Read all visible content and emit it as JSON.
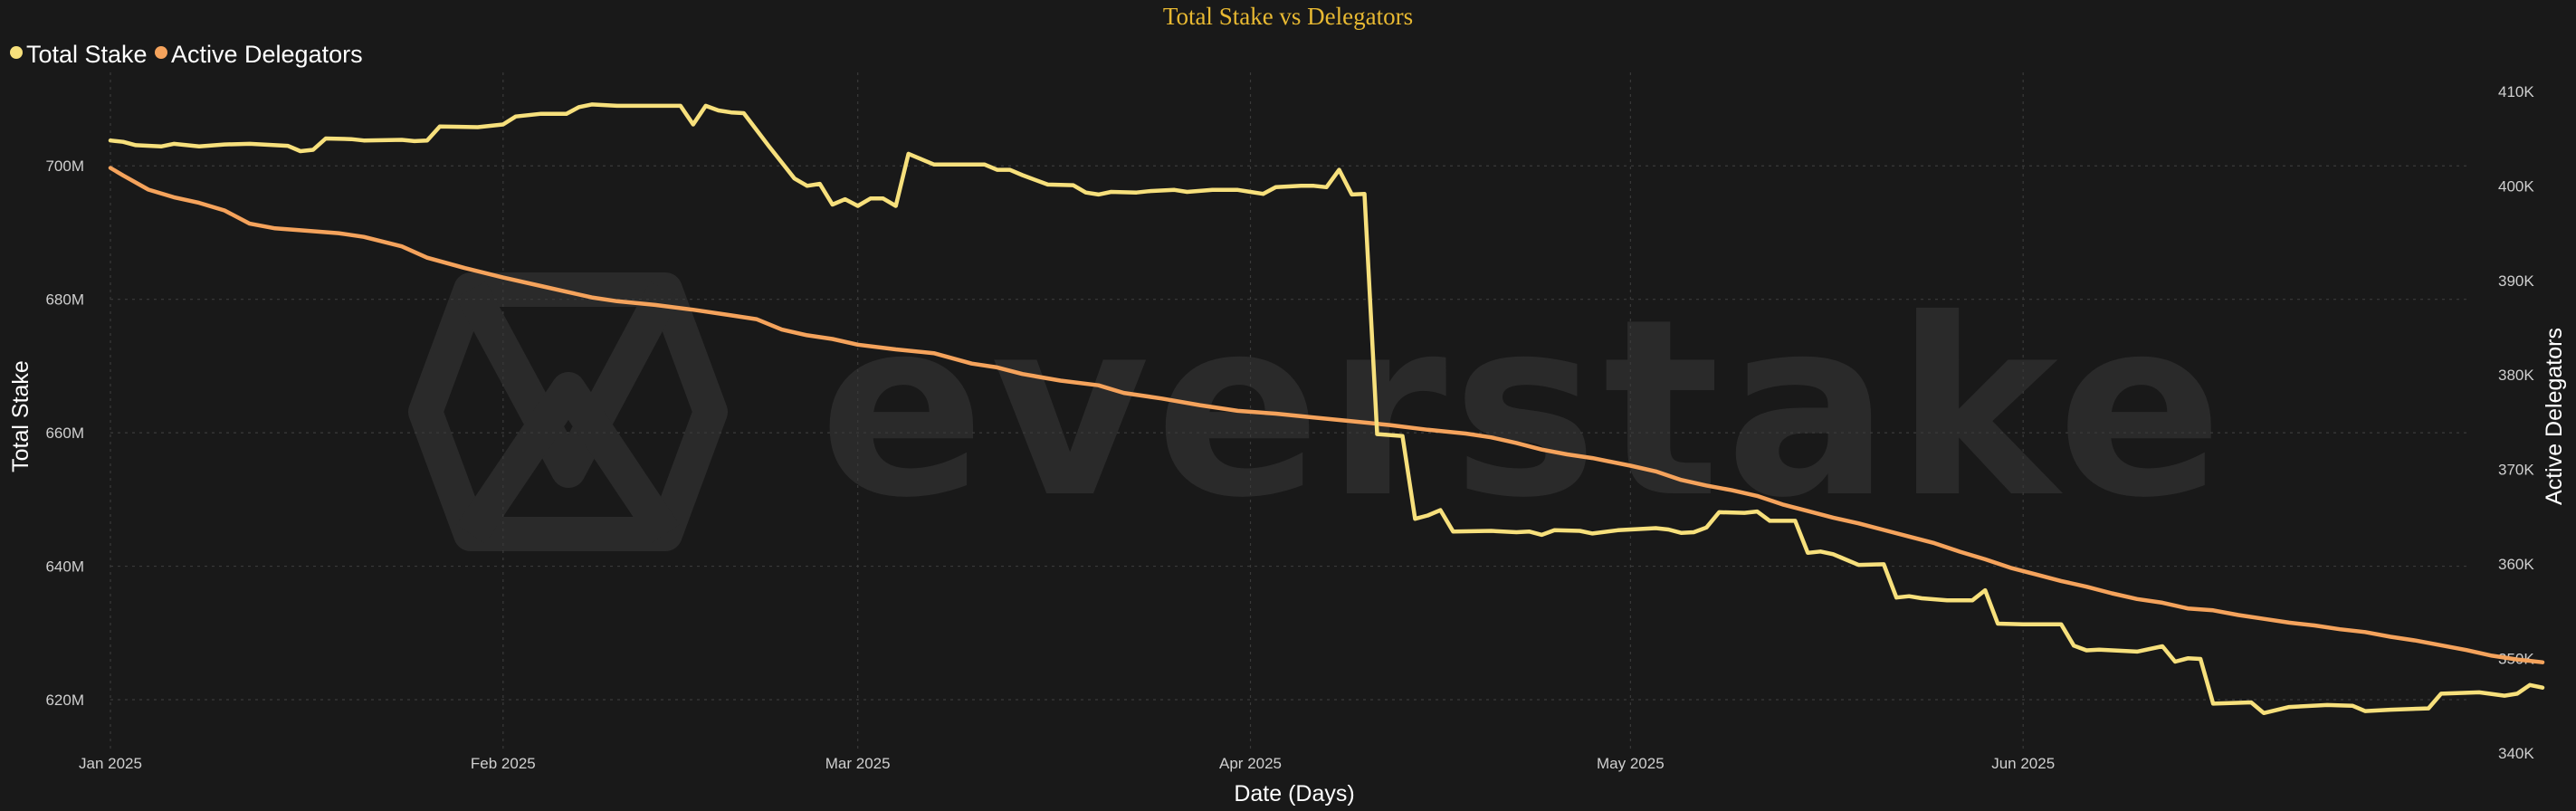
{
  "chart_data": {
    "type": "line",
    "title": "Total Stake vs Delegators",
    "xlabel": "Date (Days)",
    "ylabel": "Total Stake",
    "ylabel_right": "Active Delegators",
    "x_ticks": [
      "Jan 2025",
      "Feb 2025",
      "Mar 2025",
      "Apr 2025",
      "May 2025",
      "Jun 2025"
    ],
    "y_ticks": [
      "620M",
      "640M",
      "660M",
      "680M",
      "700M"
    ],
    "y2_ticks": [
      "340K",
      "350K",
      "360K",
      "370K",
      "380K",
      "390K",
      "400K",
      "410K"
    ],
    "ylim": [
      612,
      714
    ],
    "y2lim": [
      340,
      412
    ],
    "xlim": [
      "2025-01-01",
      "2025-07-06"
    ],
    "grid": true,
    "legend_position": "top-left",
    "watermark": "everstake",
    "series": [
      {
        "name": "Total Stake",
        "axis": "left",
        "color": "#f7e07c",
        "points": [
          [
            "2025-01-01",
            703.8
          ],
          [
            "2025-01-02",
            703.6
          ],
          [
            "2025-01-03",
            703.1
          ],
          [
            "2025-01-05",
            702.9
          ],
          [
            "2025-01-06",
            703.3
          ],
          [
            "2025-01-08",
            702.9
          ],
          [
            "2025-01-10",
            703.2
          ],
          [
            "2025-01-12",
            703.3
          ],
          [
            "2025-01-15",
            703.0
          ],
          [
            "2025-01-16",
            702.2
          ],
          [
            "2025-01-17",
            702.4
          ],
          [
            "2025-01-18",
            704.1
          ],
          [
            "2025-01-20",
            704.0
          ],
          [
            "2025-01-21",
            703.8
          ],
          [
            "2025-01-24",
            703.9
          ],
          [
            "2025-01-25",
            703.7
          ],
          [
            "2025-01-26",
            703.8
          ],
          [
            "2025-01-27",
            705.9
          ],
          [
            "2025-01-30",
            705.8
          ],
          [
            "2025-02-01",
            706.2
          ],
          [
            "2025-02-02",
            707.4
          ],
          [
            "2025-02-04",
            707.8
          ],
          [
            "2025-02-06",
            707.8
          ],
          [
            "2025-02-07",
            708.8
          ],
          [
            "2025-02-08",
            709.2
          ],
          [
            "2025-02-10",
            709.0
          ],
          [
            "2025-02-12",
            709.0
          ],
          [
            "2025-02-15",
            709.0
          ],
          [
            "2025-02-16",
            706.2
          ],
          [
            "2025-02-17",
            709.0
          ],
          [
            "2025-02-18",
            708.3
          ],
          [
            "2025-02-19",
            708.0
          ],
          [
            "2025-02-20",
            707.9
          ],
          [
            "2025-02-21",
            705.4
          ],
          [
            "2025-02-22",
            702.9
          ],
          [
            "2025-02-24",
            698.1
          ],
          [
            "2025-02-25",
            697.0
          ],
          [
            "2025-02-26",
            697.3
          ],
          [
            "2025-02-27",
            694.2
          ],
          [
            "2025-02-28",
            695.0
          ],
          [
            "2025-03-01",
            694.0
          ],
          [
            "2025-03-02",
            695.1
          ],
          [
            "2025-03-03",
            695.1
          ],
          [
            "2025-03-04",
            694.0
          ],
          [
            "2025-03-05",
            701.8
          ],
          [
            "2025-03-06",
            701.0
          ],
          [
            "2025-03-07",
            700.2
          ],
          [
            "2025-03-10",
            700.2
          ],
          [
            "2025-03-11",
            700.2
          ],
          [
            "2025-03-12",
            699.4
          ],
          [
            "2025-03-13",
            699.4
          ],
          [
            "2025-03-14",
            698.6
          ],
          [
            "2025-03-16",
            697.2
          ],
          [
            "2025-03-18",
            697.1
          ],
          [
            "2025-03-19",
            696.0
          ],
          [
            "2025-03-20",
            695.7
          ],
          [
            "2025-03-21",
            696.1
          ],
          [
            "2025-03-23",
            696.0
          ],
          [
            "2025-03-24",
            696.2
          ],
          [
            "2025-03-26",
            696.4
          ],
          [
            "2025-03-27",
            696.1
          ],
          [
            "2025-03-29",
            696.4
          ],
          [
            "2025-03-31",
            696.4
          ],
          [
            "2025-04-01",
            696.1
          ],
          [
            "2025-04-02",
            695.8
          ],
          [
            "2025-04-03",
            696.8
          ],
          [
            "2025-04-05",
            697.0
          ],
          [
            "2025-04-06",
            697.0
          ],
          [
            "2025-04-07",
            696.8
          ],
          [
            "2025-04-08",
            699.4
          ],
          [
            "2025-04-09",
            695.7
          ],
          [
            "2025-04-10",
            695.8
          ],
          [
            "2025-04-11",
            659.8
          ],
          [
            "2025-04-13",
            659.5
          ],
          [
            "2025-04-14",
            647.1
          ],
          [
            "2025-04-15",
            647.6
          ],
          [
            "2025-04-16",
            648.4
          ],
          [
            "2025-04-17",
            645.2
          ],
          [
            "2025-04-20",
            645.3
          ],
          [
            "2025-04-22",
            645.1
          ],
          [
            "2025-04-23",
            645.2
          ],
          [
            "2025-04-24",
            644.7
          ],
          [
            "2025-04-25",
            645.4
          ],
          [
            "2025-04-27",
            645.3
          ],
          [
            "2025-04-28",
            644.9
          ],
          [
            "2025-04-30",
            645.4
          ],
          [
            "2025-05-01",
            645.5
          ],
          [
            "2025-05-03",
            645.7
          ],
          [
            "2025-05-04",
            645.5
          ],
          [
            "2025-05-05",
            645.0
          ],
          [
            "2025-05-06",
            645.1
          ],
          [
            "2025-05-07",
            645.8
          ],
          [
            "2025-05-08",
            648.1
          ],
          [
            "2025-05-10",
            648.0
          ],
          [
            "2025-05-11",
            648.2
          ],
          [
            "2025-05-12",
            646.8
          ],
          [
            "2025-05-14",
            646.8
          ],
          [
            "2025-05-15",
            642.0
          ],
          [
            "2025-05-16",
            642.2
          ],
          [
            "2025-05-17",
            641.8
          ],
          [
            "2025-05-19",
            640.2
          ],
          [
            "2025-05-21",
            640.3
          ],
          [
            "2025-05-22",
            635.3
          ],
          [
            "2025-05-23",
            635.5
          ],
          [
            "2025-05-24",
            635.2
          ],
          [
            "2025-05-26",
            634.9
          ],
          [
            "2025-05-28",
            634.9
          ],
          [
            "2025-05-29",
            636.4
          ],
          [
            "2025-05-30",
            631.4
          ],
          [
            "2025-06-01",
            631.3
          ],
          [
            "2025-06-04",
            631.3
          ],
          [
            "2025-06-05",
            628.1
          ],
          [
            "2025-06-06",
            627.4
          ],
          [
            "2025-06-07",
            627.5
          ],
          [
            "2025-06-10",
            627.2
          ],
          [
            "2025-06-12",
            628.0
          ],
          [
            "2025-06-13",
            625.7
          ],
          [
            "2025-06-14",
            626.2
          ],
          [
            "2025-06-15",
            626.1
          ],
          [
            "2025-06-16",
            619.4
          ],
          [
            "2025-06-19",
            619.6
          ],
          [
            "2025-06-20",
            618.0
          ],
          [
            "2025-06-22",
            618.9
          ],
          [
            "2025-06-25",
            619.2
          ],
          [
            "2025-06-27",
            619.1
          ],
          [
            "2025-06-28",
            618.3
          ],
          [
            "2025-06-30",
            618.5
          ],
          [
            "2025-07-03",
            618.7
          ],
          [
            "2025-07-04",
            620.9
          ],
          [
            "2025-07-07",
            621.1
          ],
          [
            "2025-07-09",
            620.6
          ],
          [
            "2025-07-10",
            620.9
          ],
          [
            "2025-07-11",
            622.2
          ],
          [
            "2025-07-12",
            621.8
          ]
        ]
      },
      {
        "name": "Active Delegators",
        "axis": "right",
        "color": "#f5a35c",
        "points": [
          [
            "2025-01-01",
            401.9
          ],
          [
            "2025-01-02",
            401.1
          ],
          [
            "2025-01-04",
            399.6
          ],
          [
            "2025-01-06",
            398.8
          ],
          [
            "2025-01-08",
            398.2
          ],
          [
            "2025-01-10",
            397.4
          ],
          [
            "2025-01-12",
            396.0
          ],
          [
            "2025-01-14",
            395.5
          ],
          [
            "2025-01-16",
            395.3
          ],
          [
            "2025-01-19",
            395.0
          ],
          [
            "2025-01-21",
            394.6
          ],
          [
            "2025-01-24",
            393.6
          ],
          [
            "2025-01-26",
            392.4
          ],
          [
            "2025-01-29",
            391.3
          ],
          [
            "2025-02-01",
            390.3
          ],
          [
            "2025-02-04",
            389.4
          ],
          [
            "2025-02-06",
            388.8
          ],
          [
            "2025-02-08",
            388.2
          ],
          [
            "2025-02-10",
            387.8
          ],
          [
            "2025-02-13",
            387.4
          ],
          [
            "2025-02-16",
            386.9
          ],
          [
            "2025-02-19",
            386.3
          ],
          [
            "2025-02-21",
            385.9
          ],
          [
            "2025-02-23",
            384.8
          ],
          [
            "2025-02-25",
            384.2
          ],
          [
            "2025-02-27",
            383.8
          ],
          [
            "2025-03-01",
            383.2
          ],
          [
            "2025-03-04",
            382.7
          ],
          [
            "2025-03-07",
            382.3
          ],
          [
            "2025-03-10",
            381.2
          ],
          [
            "2025-03-12",
            380.8
          ],
          [
            "2025-03-14",
            380.1
          ],
          [
            "2025-03-17",
            379.4
          ],
          [
            "2025-03-20",
            378.9
          ],
          [
            "2025-03-22",
            378.1
          ],
          [
            "2025-03-25",
            377.5
          ],
          [
            "2025-03-28",
            376.8
          ],
          [
            "2025-03-31",
            376.2
          ],
          [
            "2025-04-03",
            375.9
          ],
          [
            "2025-04-06",
            375.5
          ],
          [
            "2025-04-09",
            375.1
          ],
          [
            "2025-04-12",
            374.7
          ],
          [
            "2025-04-15",
            374.2
          ],
          [
            "2025-04-18",
            373.8
          ],
          [
            "2025-04-20",
            373.4
          ],
          [
            "2025-04-22",
            372.8
          ],
          [
            "2025-04-24",
            372.1
          ],
          [
            "2025-04-26",
            371.6
          ],
          [
            "2025-04-28",
            371.2
          ],
          [
            "2025-05-01",
            370.4
          ],
          [
            "2025-05-03",
            369.8
          ],
          [
            "2025-05-05",
            368.9
          ],
          [
            "2025-05-07",
            368.3
          ],
          [
            "2025-05-09",
            367.8
          ],
          [
            "2025-05-11",
            367.2
          ],
          [
            "2025-05-13",
            366.3
          ],
          [
            "2025-05-15",
            365.6
          ],
          [
            "2025-05-17",
            364.9
          ],
          [
            "2025-05-19",
            364.3
          ],
          [
            "2025-05-21",
            363.6
          ],
          [
            "2025-05-23",
            362.9
          ],
          [
            "2025-05-25",
            362.2
          ],
          [
            "2025-05-27",
            361.3
          ],
          [
            "2025-05-29",
            360.5
          ],
          [
            "2025-05-31",
            359.6
          ],
          [
            "2025-06-02",
            358.9
          ],
          [
            "2025-06-04",
            358.2
          ],
          [
            "2025-06-06",
            357.6
          ],
          [
            "2025-06-08",
            356.9
          ],
          [
            "2025-06-10",
            356.3
          ],
          [
            "2025-06-12",
            355.9
          ],
          [
            "2025-06-14",
            355.3
          ],
          [
            "2025-06-16",
            355.1
          ],
          [
            "2025-06-18",
            354.6
          ],
          [
            "2025-06-20",
            354.2
          ],
          [
            "2025-06-22",
            353.8
          ],
          [
            "2025-06-24",
            353.5
          ],
          [
            "2025-06-26",
            353.1
          ],
          [
            "2025-06-28",
            352.8
          ],
          [
            "2025-06-30",
            352.3
          ],
          [
            "2025-07-02",
            351.9
          ],
          [
            "2025-07-04",
            351.4
          ],
          [
            "2025-07-06",
            350.9
          ],
          [
            "2025-07-08",
            350.3
          ],
          [
            "2025-07-10",
            349.9
          ],
          [
            "2025-07-12",
            349.6
          ]
        ]
      }
    ]
  }
}
